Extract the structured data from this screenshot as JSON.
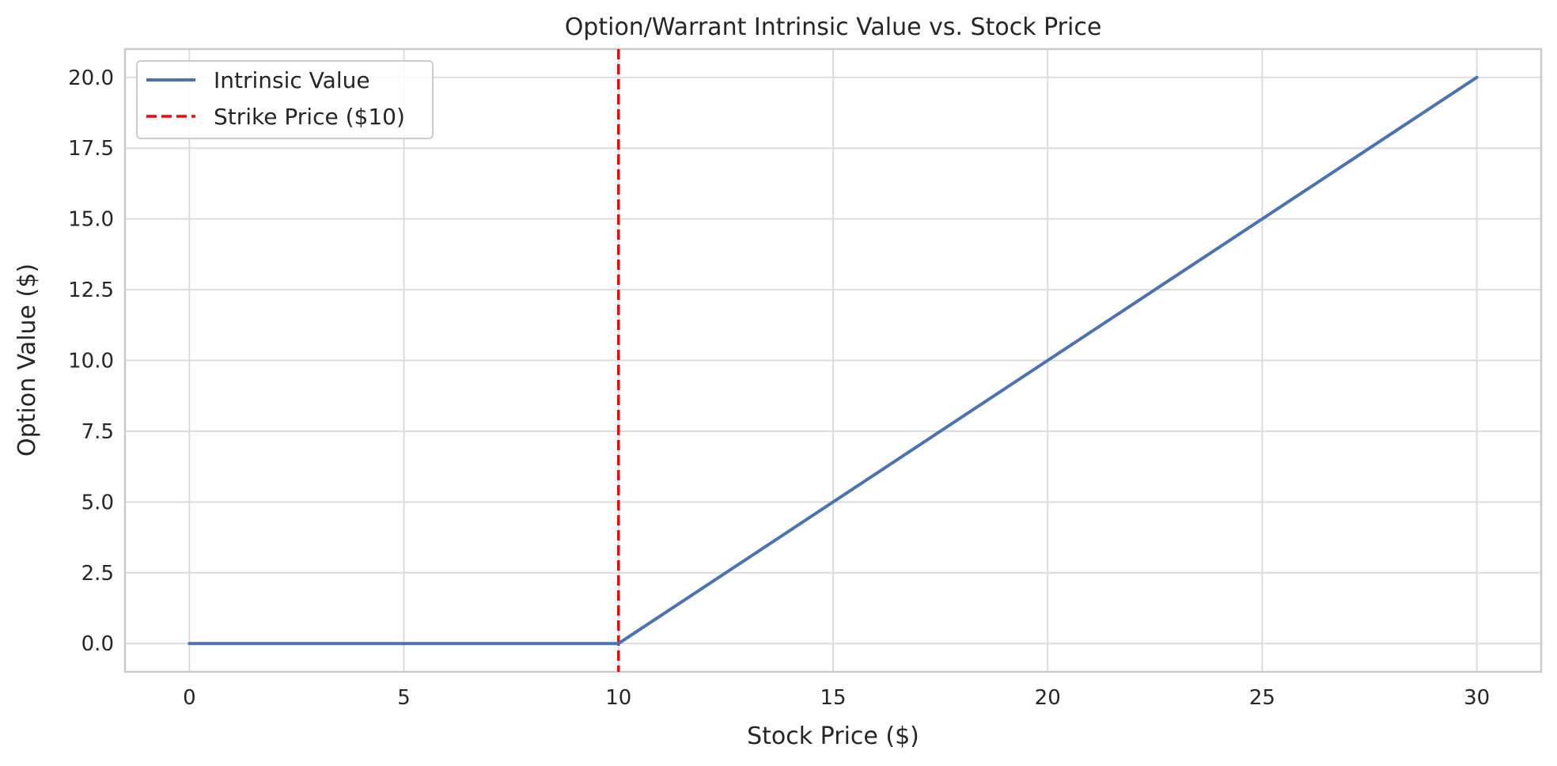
{
  "chart_data": {
    "type": "line",
    "title": "Option/Warrant Intrinsic Value vs. Stock Price",
    "xlabel": "Stock Price ($)",
    "ylabel": "Option Value ($)",
    "xlim": [
      -1.5,
      31.5
    ],
    "ylim": [
      -1.0,
      21.0
    ],
    "x_ticks": [
      0,
      5,
      10,
      15,
      20,
      25,
      30
    ],
    "x_tick_labels": [
      "0",
      "5",
      "10",
      "15",
      "20",
      "25",
      "30"
    ],
    "y_ticks": [
      0,
      2.5,
      5,
      7.5,
      10,
      12.5,
      15,
      17.5,
      20
    ],
    "y_tick_labels": [
      "0.0",
      "2.5",
      "5.0",
      "7.5",
      "10.0",
      "12.5",
      "15.0",
      "17.5",
      "20.0"
    ],
    "grid": true,
    "legend_position": "upper-left",
    "series": [
      {
        "name": "Intrinsic Value",
        "color": "#4c72b0",
        "style": "solid",
        "x": [
          0,
          10,
          30
        ],
        "y": [
          0,
          0,
          20
        ]
      }
    ],
    "reference_lines": [
      {
        "name": "Strike Price ($10)",
        "orientation": "vertical",
        "x": 10,
        "color": "#ff0000",
        "style": "dashed"
      }
    ]
  }
}
